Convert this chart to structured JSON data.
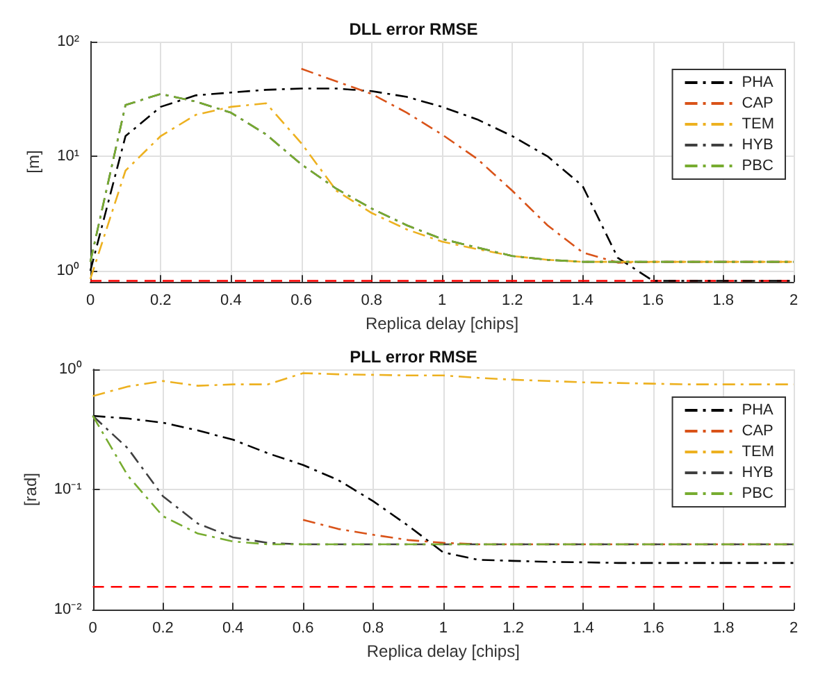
{
  "chart_data": [
    {
      "type": "line",
      "title": "DLL error RMSE",
      "xlabel": "Replica delay [chips]",
      "ylabel": "[m]",
      "log": "y",
      "grid": true,
      "legend": "top right",
      "marker": "none",
      "line_style": "dashdot",
      "x": [
        0,
        0.1,
        0.2,
        0.3,
        0.4,
        0.5,
        0.6,
        0.7,
        0.8,
        0.9,
        1,
        1.1,
        1.2,
        1.3,
        1.4,
        1.5,
        1.6,
        1.7,
        1.8,
        1.9,
        2
      ],
      "xlim": [
        0,
        2
      ],
      "xticks": [
        0,
        0.2,
        0.4,
        0.6,
        0.8,
        1,
        1.2,
        1.4,
        1.6,
        1.8,
        2
      ],
      "ylim": [
        0.8,
        100
      ],
      "yticks": [
        {
          "value": 1,
          "label": "10⁰"
        },
        {
          "value": 10,
          "label": "10¹"
        },
        {
          "value": 100,
          "label": "10²"
        }
      ],
      "series": [
        {
          "name": "PHA",
          "color": "#000000",
          "values": [
            1.0,
            15,
            27,
            34,
            36,
            38,
            39,
            39,
            37,
            33,
            27,
            21,
            15,
            10,
            5.5,
            1.3,
            0.82,
            0.82,
            0.82,
            0.82,
            0.82
          ]
        },
        {
          "name": "CAP",
          "color": "#d95319",
          "values": [
            null,
            null,
            null,
            null,
            null,
            null,
            58,
            45,
            35,
            24,
            15.5,
            9.5,
            5,
            2.5,
            1.45,
            1.18,
            1.2,
            1.2,
            1.2,
            1.2,
            1.2
          ]
        },
        {
          "name": "TEM",
          "color": "#edb120",
          "values": [
            0.85,
            7.5,
            15,
            23,
            27,
            29,
            13,
            5,
            3.2,
            2.3,
            1.8,
            1.55,
            1.35,
            1.25,
            1.2,
            1.2,
            1.2,
            1.2,
            1.2,
            1.2,
            1.2
          ]
        },
        {
          "name": "HYB",
          "color": "#404040",
          "values": [
            1.2,
            28,
            35,
            30,
            24,
            15.5,
            8.5,
            5.2,
            3.5,
            2.5,
            1.9,
            1.6,
            1.35,
            1.25,
            1.2,
            1.2,
            1.2,
            1.2,
            1.2,
            1.2,
            1.2
          ]
        },
        {
          "name": "PBC",
          "color": "#77ac30",
          "values": [
            1.2,
            28,
            35,
            30,
            24,
            15.5,
            8.5,
            5.2,
            3.5,
            2.5,
            1.9,
            1.6,
            1.35,
            1.25,
            1.2,
            1.2,
            1.2,
            1.2,
            1.2,
            1.2,
            1.2
          ]
        }
      ],
      "ref_lines": [
        {
          "axis": "y",
          "value": 0.82,
          "color": "#ff0000",
          "line_style": "dashed"
        }
      ]
    },
    {
      "type": "line",
      "title": "PLL error RMSE",
      "xlabel": "Replica delay [chips]",
      "ylabel": "[rad]",
      "log": "y",
      "grid": true,
      "legend": "top right",
      "marker": "none",
      "line_style": "dashdot",
      "x": [
        0,
        0.1,
        0.2,
        0.3,
        0.4,
        0.5,
        0.6,
        0.7,
        0.8,
        0.9,
        1,
        1.1,
        1.2,
        1.3,
        1.4,
        1.5,
        1.6,
        1.7,
        1.8,
        1.9,
        2
      ],
      "xlim": [
        0,
        2
      ],
      "xticks": [
        0,
        0.2,
        0.4,
        0.6,
        0.8,
        1,
        1.2,
        1.4,
        1.6,
        1.8,
        2
      ],
      "ylim": [
        0.01,
        1
      ],
      "yticks": [
        {
          "value": 0.01,
          "label": "10⁻²"
        },
        {
          "value": 0.1,
          "label": "10⁻¹"
        },
        {
          "value": 1,
          "label": "10⁰"
        }
      ],
      "series": [
        {
          "name": "PHA",
          "color": "#000000",
          "values": [
            0.41,
            0.39,
            0.36,
            0.31,
            0.26,
            0.2,
            0.16,
            0.12,
            0.08,
            0.05,
            0.03,
            0.026,
            0.0255,
            0.025,
            0.0248,
            0.0245,
            0.0245,
            0.0245,
            0.0245,
            0.0245,
            0.0245
          ]
        },
        {
          "name": "CAP",
          "color": "#d95319",
          "values": [
            null,
            null,
            null,
            null,
            null,
            null,
            0.056,
            0.047,
            0.042,
            0.038,
            0.036,
            0.035,
            0.035,
            0.035,
            0.035,
            0.035,
            0.035,
            0.035,
            0.035,
            0.035,
            0.035
          ]
        },
        {
          "name": "TEM",
          "color": "#edb120",
          "values": [
            0.6,
            0.72,
            0.8,
            0.73,
            0.75,
            0.75,
            0.93,
            0.91,
            0.9,
            0.89,
            0.89,
            0.85,
            0.82,
            0.8,
            0.78,
            0.77,
            0.76,
            0.75,
            0.75,
            0.75,
            0.75
          ]
        },
        {
          "name": "HYB",
          "color": "#404040",
          "values": [
            0.41,
            0.22,
            0.088,
            0.052,
            0.04,
            0.036,
            0.035,
            0.035,
            0.035,
            0.035,
            0.035,
            0.035,
            0.035,
            0.035,
            0.035,
            0.035,
            0.035,
            0.035,
            0.035,
            0.035,
            0.035
          ]
        },
        {
          "name": "PBC",
          "color": "#77ac30",
          "values": [
            0.41,
            0.13,
            0.06,
            0.043,
            0.037,
            0.035,
            0.035,
            0.035,
            0.035,
            0.035,
            0.035,
            0.035,
            0.035,
            0.035,
            0.035,
            0.035,
            0.035,
            0.035,
            0.035,
            0.035,
            0.035
          ]
        }
      ],
      "ref_lines": [
        {
          "axis": "y",
          "value": 0.0155,
          "color": "#ff0000",
          "line_style": "dashed"
        }
      ]
    }
  ]
}
